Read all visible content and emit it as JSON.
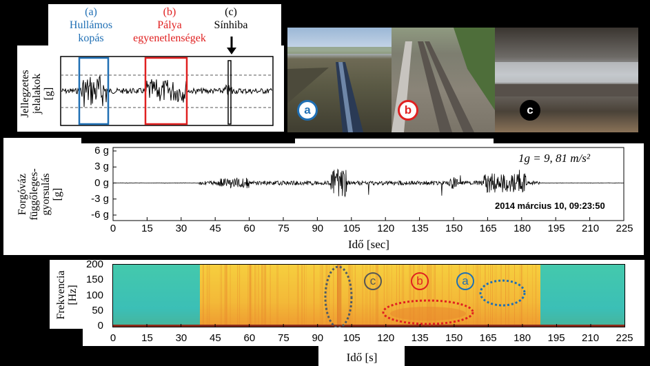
{
  "top_labels": {
    "a_letter": "(a)",
    "a_line1": "Hullámos",
    "a_line2": "kopás",
    "b_letter": "(b)",
    "b_line1": "Pálya",
    "b_line2": "egyenetlenségek",
    "c_letter": "(c)",
    "c_line1": "Sínhiba"
  },
  "signature_axis_label": [
    "Jellegzetes",
    "jelalakok",
    "[g]"
  ],
  "photo_badges": [
    "a",
    "b",
    "c"
  ],
  "accel_chart": {
    "ylabel": [
      "Forgóváz",
      "függőleges-",
      "gyorsulás",
      "[g]"
    ],
    "yticks": [
      "6 g",
      "3 g",
      "0 g",
      "-3 g",
      "-6 g"
    ],
    "xticks": [
      "0",
      "15",
      "30",
      "45",
      "60",
      "75",
      "90",
      "105",
      "120",
      "135",
      "150",
      "165",
      "180",
      "195",
      "210",
      "225"
    ],
    "xlabel": "Idő [sec]",
    "formula": "1g = 9, 81 m/s²",
    "timestamp": "2014 március 10, 09:23:50"
  },
  "spectro_chart": {
    "ylabel": [
      "Frekvencia",
      "[Hz]"
    ],
    "yticks": [
      "200",
      "150",
      "100",
      "50",
      "0"
    ],
    "xticks": [
      "0",
      "15",
      "30",
      "45",
      "60",
      "75",
      "90",
      "105",
      "120",
      "135",
      "150",
      "165",
      "180",
      "195",
      "210",
      "225"
    ],
    "xlabel": "Idő [s]",
    "annotations": [
      "c",
      "b",
      "a"
    ]
  },
  "colors": {
    "a": "#1f6fb4",
    "b": "#e02020",
    "c": "#000000",
    "spectro_quiet": "#3fc6a8",
    "spectro_active": "#f2c43a"
  }
}
